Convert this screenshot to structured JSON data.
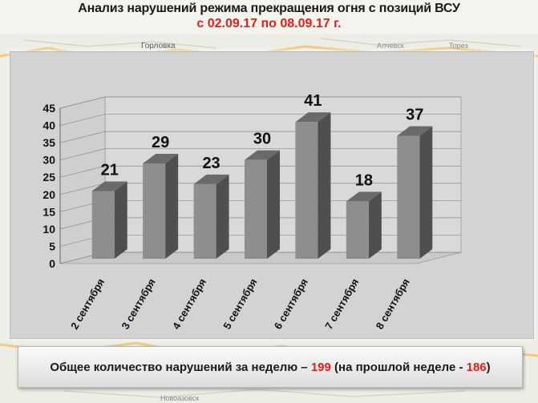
{
  "header": {
    "title": "Анализ нарушений режима прекращения огня с позиций ВСУ",
    "period": "с 02.09.17 по 08.09.17 г."
  },
  "chart_data": {
    "type": "bar",
    "categories": [
      "2 сентября",
      "3 сентября",
      "4 сентября",
      "5 сентября",
      "6 сентября",
      "7 сентября",
      "8 сентября"
    ],
    "values": [
      21,
      29,
      23,
      30,
      41,
      18,
      37
    ],
    "ylim": [
      0,
      45
    ],
    "yticks": [
      "0",
      "5",
      "10",
      "15",
      "20",
      "25",
      "30",
      "35",
      "40",
      "45"
    ],
    "grid": true,
    "bar_color": "#8e8e8e"
  },
  "summary": {
    "prefix": "Общее количество нарушений за неделю – ",
    "total": "199",
    "middle": " (на прошлой неделе - ",
    "previous": "186",
    "suffix": ")"
  },
  "map_labels": [
    "Горловка",
    "Алчевск",
    "Торез",
    "Новоазовск"
  ]
}
